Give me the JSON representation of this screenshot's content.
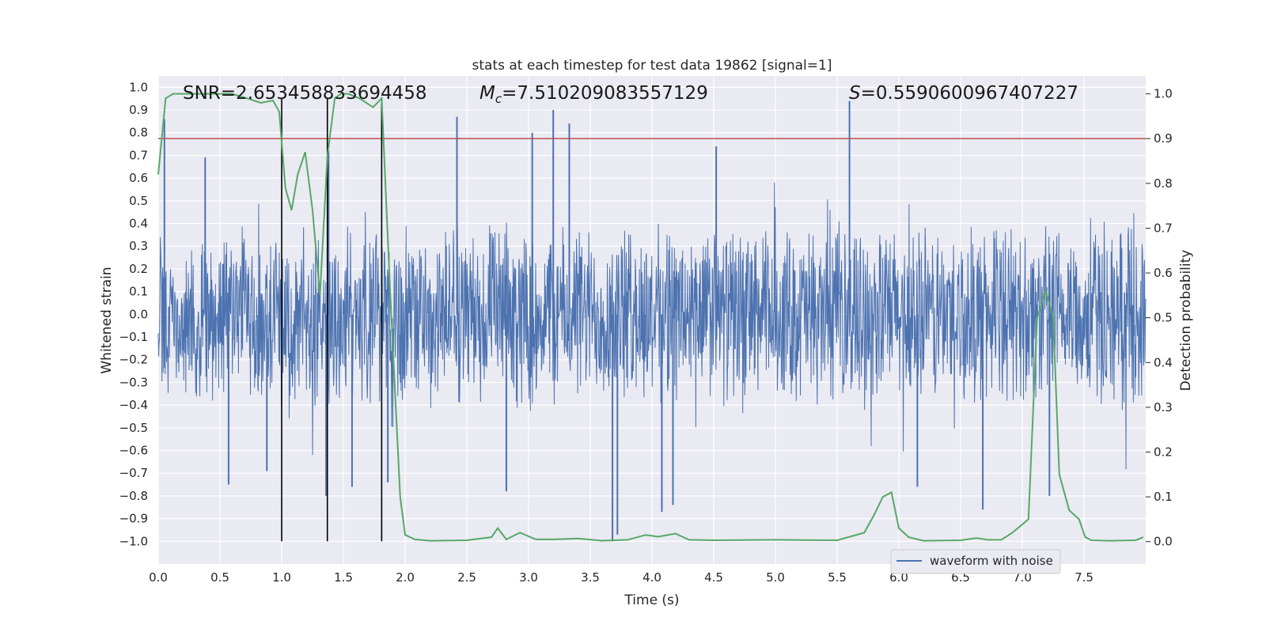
{
  "chart_data": {
    "type": "line",
    "title": "stats at each timestep for test data 19862 [signal=1]",
    "xlabel": "Time (s)",
    "ylabel": "Whitened strain",
    "y2label": "Detection probability",
    "xlim": [
      0,
      8
    ],
    "ylim": [
      -1.1,
      1.05
    ],
    "y2lim": [
      -0.05,
      1.04
    ],
    "xticks": [
      "0.0",
      "0.5",
      "1.0",
      "1.5",
      "2.0",
      "2.5",
      "3.0",
      "3.5",
      "4.0",
      "4.5",
      "5.0",
      "5.5",
      "6.0",
      "6.5",
      "7.0",
      "7.5"
    ],
    "yticks": [
      "1.0",
      "0.9",
      "0.8",
      "0.7",
      "0.6",
      "0.5",
      "0.4",
      "0.3",
      "0.2",
      "0.1",
      "0.0",
      "-0.1",
      "-0.2",
      "-0.3",
      "-0.4",
      "-0.5",
      "-0.6",
      "-0.7",
      "-0.8",
      "-0.9",
      "-1.0"
    ],
    "y2ticks": [
      "1.0",
      "0.9",
      "0.8",
      "0.7",
      "0.6",
      "0.5",
      "0.4",
      "0.3",
      "0.2",
      "0.1",
      "0.0"
    ],
    "annotations": {
      "snr": "SNR=2.653458833694458",
      "mc_symbol": "M",
      "mc_sub": "c",
      "mc_value": "=7.510209083557129",
      "s_symbol": "S",
      "s_value": "=0.5590600967407227"
    },
    "legend": {
      "label": "waveform with noise",
      "position": "lower-right"
    },
    "threshold": {
      "value": 0.9,
      "color": "#c44e52"
    },
    "vlines": [
      1.0,
      1.37,
      1.81
    ],
    "waveform": {
      "name": "waveform with noise",
      "color": "#4c72b0",
      "duration_s": 8.0,
      "samples": 2400,
      "base_amplitude": 0.33,
      "seed": 19862,
      "spikes": [
        {
          "t": 0.05,
          "v": 0.86
        },
        {
          "t": 0.38,
          "v": 0.69
        },
        {
          "t": 0.57,
          "v": -0.75
        },
        {
          "t": 0.88,
          "v": -0.69
        },
        {
          "t": 1.36,
          "v": -0.8
        },
        {
          "t": 1.38,
          "v": 0.72
        },
        {
          "t": 1.57,
          "v": -0.76
        },
        {
          "t": 1.86,
          "v": -0.74
        },
        {
          "t": 2.42,
          "v": 0.87
        },
        {
          "t": 2.82,
          "v": -0.78
        },
        {
          "t": 3.03,
          "v": 0.8
        },
        {
          "t": 3.2,
          "v": 0.9
        },
        {
          "t": 3.33,
          "v": 0.84
        },
        {
          "t": 3.68,
          "v": -1.0
        },
        {
          "t": 3.72,
          "v": -0.97
        },
        {
          "t": 4.08,
          "v": -0.87
        },
        {
          "t": 4.17,
          "v": -0.84
        },
        {
          "t": 4.52,
          "v": 0.74
        },
        {
          "t": 5.6,
          "v": 0.94
        },
        {
          "t": 6.15,
          "v": -0.76
        },
        {
          "t": 6.68,
          "v": -0.86
        },
        {
          "t": 7.22,
          "v": -0.8
        }
      ]
    },
    "probability": {
      "color": "#55a868",
      "t": [
        0.0,
        0.06,
        0.12,
        0.3,
        0.6,
        0.72,
        0.83,
        0.93,
        0.98,
        1.03,
        1.08,
        1.13,
        1.19,
        1.25,
        1.31,
        1.37,
        1.43,
        1.48,
        1.54,
        1.63,
        1.74,
        1.81,
        1.88,
        1.96,
        2.0,
        2.08,
        2.2,
        2.5,
        2.7,
        2.75,
        2.82,
        2.93,
        3.06,
        3.2,
        3.4,
        3.6,
        3.8,
        3.95,
        4.05,
        4.19,
        4.3,
        4.5,
        5.0,
        5.5,
        5.72,
        5.8,
        5.87,
        5.94,
        6.0,
        6.08,
        6.2,
        6.5,
        6.63,
        6.72,
        6.83,
        6.92,
        7.05,
        7.12,
        7.19,
        7.25,
        7.3,
        7.38,
        7.46,
        7.51,
        7.56,
        7.7,
        7.92,
        7.98
      ],
      "p": [
        0.82,
        0.99,
        1.0,
        1.0,
        1.0,
        0.99,
        0.98,
        0.985,
        0.96,
        0.79,
        0.74,
        0.82,
        0.87,
        0.74,
        0.55,
        0.86,
        0.99,
        1.0,
        1.0,
        0.99,
        0.97,
        0.99,
        0.55,
        0.1,
        0.015,
        0.005,
        0.002,
        0.003,
        0.01,
        0.03,
        0.005,
        0.02,
        0.005,
        0.005,
        0.007,
        0.002,
        0.004,
        0.015,
        0.011,
        0.018,
        0.004,
        0.003,
        0.004,
        0.003,
        0.02,
        0.06,
        0.1,
        0.11,
        0.03,
        0.01,
        0.002,
        0.003,
        0.008,
        0.004,
        0.004,
        0.02,
        0.05,
        0.5,
        0.56,
        0.5,
        0.15,
        0.07,
        0.05,
        0.01,
        0.003,
        0.002,
        0.003,
        0.01
      ]
    }
  }
}
